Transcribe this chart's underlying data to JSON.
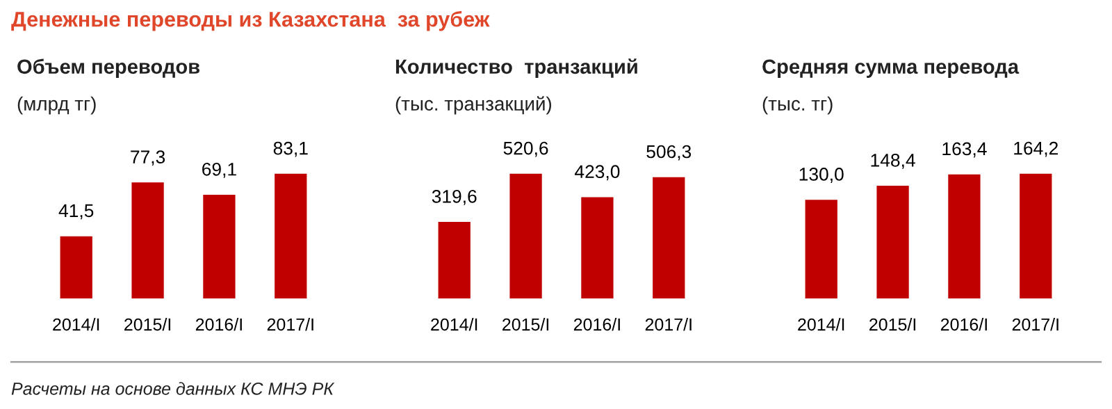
{
  "chart_data": [
    {
      "type": "bar",
      "title": "Объем переводов",
      "subtitle": "(млрд тг)",
      "categories": [
        "2014/I",
        "2015/I",
        "2016/I",
        "2017/I"
      ],
      "values": [
        41.5,
        77.3,
        69.1,
        83.1
      ],
      "color": "#c00000",
      "data_labels": true,
      "value_labels": [
        "41,5",
        "77,3",
        "69,1",
        "83,1"
      ],
      "tick_labels": "x",
      "annotations": [
        "Денежные переводы из Казахстана  за рубеж"
      ]
    },
    {
      "type": "bar",
      "title": "Количество  транзакций",
      "subtitle": "(тыс. транзакций)",
      "categories": [
        "2014/I",
        "2015/I",
        "2016/I",
        "2017/I"
      ],
      "values": [
        319.6,
        520.6,
        423.0,
        506.3
      ],
      "color": "#c00000",
      "data_labels": true,
      "value_labels": [
        "319,6",
        "520,6",
        "423,0",
        "506,3"
      ],
      "tick_labels": "x"
    },
    {
      "type": "bar",
      "title": "Средняя сумма перевода",
      "subtitle": "(тыс. тг)",
      "categories": [
        "2014/I",
        "2015/I",
        "2016/I",
        "2017/I"
      ],
      "values": [
        130.0,
        148.4,
        163.4,
        164.2
      ],
      "color": "#c00000",
      "data_labels": true,
      "value_labels": [
        "130,0",
        "148,4",
        "163,4",
        "164,2"
      ],
      "tick_labels": "x",
      "annotations": [
        "Расчеты на основе данных КС МНЭ РК"
      ]
    }
  ]
}
